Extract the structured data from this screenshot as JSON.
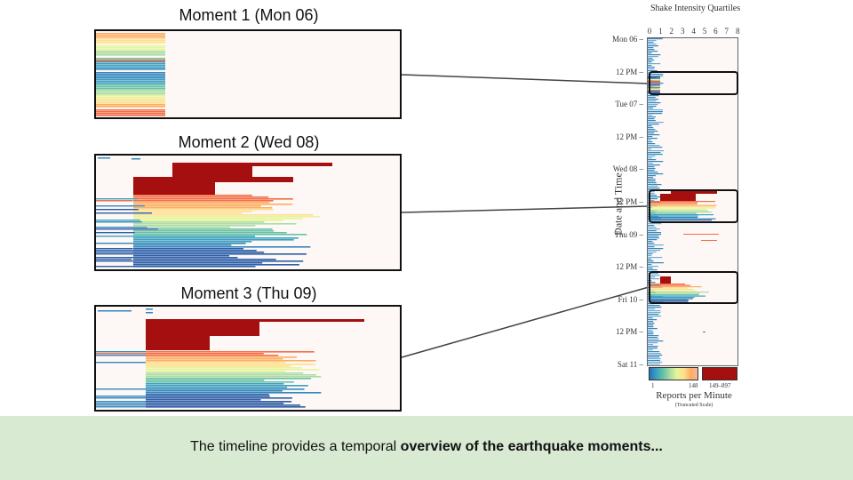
{
  "moments": [
    {
      "title": "Moment 1 (Mon 06)"
    },
    {
      "title": "Moment 2 (Wed 08)"
    },
    {
      "title": "Moment 3 (Thu 09)"
    }
  ],
  "timeline": {
    "title": "Shake Intensity Quartiles",
    "ylabel": "Date and Time",
    "x_ticks": [
      "0",
      "1",
      "2",
      "3",
      "4",
      "5",
      "6",
      "7",
      "8"
    ],
    "y_ticks": [
      "Mon 06",
      "12 PM",
      "Tue 07",
      "12 PM",
      "Wed 08",
      "12 PM",
      "Thu 09",
      "12 PM",
      "Fri 10",
      "12 PM",
      "Sat 11"
    ],
    "legend": {
      "title": "Reports per Minute",
      "subtitle": "(Truncated Scale)",
      "low": "1",
      "mid": "148",
      "high": "149–897"
    }
  },
  "colors": {
    "dark_red": "#a50f0f",
    "background": "#fdf7f6",
    "caption_band": "#d9ead3",
    "scale": [
      "#2c5ea8",
      "#3288bd",
      "#3aa1c0",
      "#66c2a5",
      "#abdda4",
      "#e6f598",
      "#fee08b",
      "#fdae61",
      "#f46d43"
    ]
  },
  "caption": {
    "prefix": "The timeline provides a temporal ",
    "bold": "overview of the earthquake moments..."
  }
}
